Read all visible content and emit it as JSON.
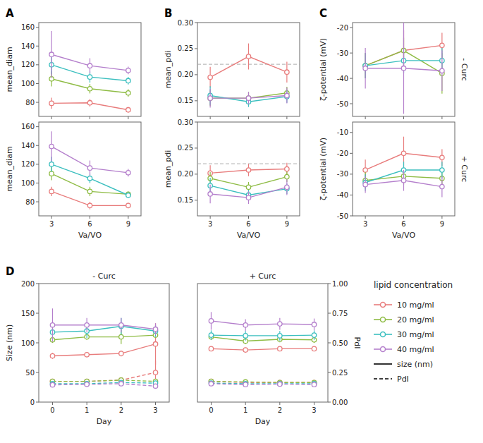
{
  "chart_data": [
    {
      "type": "line",
      "annotation": "A",
      "ylabel": "mean_diam",
      "x": [
        3,
        6,
        9
      ],
      "xlim": [
        2,
        10
      ],
      "xticks": [
        3,
        6,
        9
      ],
      "ylim": [
        65,
        165
      ],
      "yticks": [
        80,
        100,
        120,
        140,
        160
      ],
      "tick_labels": "y",
      "marker": "circle",
      "series": [
        {
          "color": "#e87c7c",
          "values": [
            79,
            79.5,
            72
          ],
          "errors": [
            6,
            4,
            3
          ]
        },
        {
          "color": "#8fbc45",
          "values": [
            105,
            94.5,
            90
          ],
          "errors": [
            8,
            5,
            4
          ]
        },
        {
          "color": "#3bbfbf",
          "values": [
            120,
            107,
            103
          ],
          "errors": [
            10,
            6,
            4
          ]
        },
        {
          "color": "#b47fcc",
          "values": [
            131,
            119,
            114
          ],
          "errors": [
            25,
            8,
            4
          ]
        }
      ]
    },
    {
      "type": "line",
      "xlabel": "Va/VO",
      "ylabel": "mean_diam",
      "x": [
        3,
        6,
        9
      ],
      "xlim": [
        2,
        10
      ],
      "xticks": [
        3,
        6,
        9
      ],
      "ylim": [
        65,
        165
      ],
      "yticks": [
        80,
        100,
        120,
        140,
        160
      ],
      "marker": "circle",
      "series": [
        {
          "color": "#e87c7c",
          "values": [
            91,
            76,
            76
          ],
          "errors": [
            5,
            4,
            3
          ]
        },
        {
          "color": "#8fbc45",
          "values": [
            110,
            91,
            88
          ],
          "errors": [
            7,
            5,
            3
          ]
        },
        {
          "color": "#3bbfbf",
          "values": [
            120,
            105,
            87
          ],
          "errors": [
            8,
            5,
            3
          ]
        },
        {
          "color": "#b47fcc",
          "values": [
            139,
            116,
            111
          ],
          "errors": [
            16,
            8,
            4
          ]
        }
      ]
    },
    {
      "type": "line",
      "annotation": "B",
      "ylabel": "mean_pdi",
      "x": [
        3,
        6,
        9
      ],
      "xlim": [
        2,
        10
      ],
      "xticks": [
        3,
        6,
        9
      ],
      "ylim": [
        0.12,
        0.3
      ],
      "yticks": [
        0.15,
        {
          "value": 0.2,
          "label": "0.20"
        },
        0.25,
        {
          "value": 0.3,
          "label": "0.30"
        }
      ],
      "reference_line": 0.22,
      "tick_labels": "y",
      "marker": "circle",
      "series": [
        {
          "color": "#e87c7c",
          "values": [
            0.195,
            0.235,
            0.205
          ],
          "errors": [
            0.02,
            0.025,
            0.02
          ]
        },
        {
          "color": "#8fbc45",
          "values": [
            0.155,
            0.155,
            0.165
          ],
          "errors": [
            0.015,
            0.012,
            0.012
          ]
        },
        {
          "color": "#3bbfbf",
          "values": [
            0.16,
            0.148,
            0.158
          ],
          "errors": [
            0.018,
            0.01,
            0.012
          ]
        },
        {
          "color": "#b47fcc",
          "values": [
            0.155,
            0.155,
            0.16
          ],
          "errors": [
            0.018,
            0.012,
            0.015
          ]
        }
      ]
    },
    {
      "type": "line",
      "xlabel": "Va/VO",
      "ylabel": "mean_pdi",
      "x": [
        3,
        6,
        9
      ],
      "xlim": [
        2,
        10
      ],
      "xticks": [
        3,
        6,
        9
      ],
      "ylim": [
        0.12,
        0.3
      ],
      "yticks": [
        0.15,
        {
          "value": 0.2,
          "label": "0.20"
        },
        0.25,
        {
          "value": 0.3,
          "label": "0.30"
        }
      ],
      "reference_line": 0.22,
      "marker": "circle",
      "series": [
        {
          "color": "#e87c7c",
          "values": [
            0.202,
            0.208,
            0.21
          ],
          "errors": [
            0.015,
            0.012,
            0.012
          ]
        },
        {
          "color": "#8fbc45",
          "values": [
            0.192,
            0.175,
            0.195
          ],
          "errors": [
            0.012,
            0.01,
            0.01
          ]
        },
        {
          "color": "#3bbfbf",
          "values": [
            0.178,
            0.16,
            0.172
          ],
          "errors": [
            0.015,
            0.01,
            0.01
          ]
        },
        {
          "color": "#b47fcc",
          "values": [
            0.162,
            0.155,
            0.175
          ],
          "errors": [
            0.018,
            0.012,
            0.015
          ]
        }
      ]
    },
    {
      "type": "line",
      "annotation": "C",
      "ylabel": "ζ-potential (mV)",
      "y2label": "- Curc",
      "x": [
        3,
        6,
        9
      ],
      "xlim": [
        2,
        10
      ],
      "xticks": [
        3,
        6,
        9
      ],
      "ylim": [
        -55,
        -18
      ],
      "yticks": [
        -50,
        -40,
        -30,
        -20
      ],
      "tick_labels": "y",
      "marker": "circle",
      "series": [
        {
          "color": "#e87c7c",
          "values": [
            -35,
            -29,
            -27
          ],
          "errors": [
            5,
            8,
            5
          ]
        },
        {
          "color": "#8fbc45",
          "values": [
            -35,
            -29,
            -38
          ],
          "errors": [
            5,
            5,
            8
          ]
        },
        {
          "color": "#3bbfbf",
          "values": [
            -35,
            -33,
            -33
          ],
          "errors": [
            5,
            5,
            5
          ]
        },
        {
          "color": "#b47fcc",
          "values": [
            -36,
            -36,
            -37
          ],
          "errors": [
            8,
            18,
            8
          ]
        }
      ]
    },
    {
      "type": "line",
      "xlabel": "Va/VO",
      "ylabel": "ζ-potential (mV)",
      "y2label": "+ Curc",
      "x": [
        3,
        6,
        9
      ],
      "xlim": [
        2,
        10
      ],
      "xticks": [
        3,
        6,
        9
      ],
      "ylim": [
        -50,
        -5
      ],
      "yticks": [
        -50,
        -40,
        -30,
        -20,
        -10
      ],
      "marker": "circle",
      "series": [
        {
          "color": "#e87c7c",
          "values": [
            -28,
            -20,
            -22
          ],
          "errors": [
            5,
            8,
            4
          ]
        },
        {
          "color": "#8fbc45",
          "values": [
            -33,
            -31,
            -32
          ],
          "errors": [
            4,
            4,
            4
          ]
        },
        {
          "color": "#3bbfbf",
          "values": [
            -34,
            -28,
            -28
          ],
          "errors": [
            4,
            4,
            4
          ]
        },
        {
          "color": "#b47fcc",
          "values": [
            -35,
            -33,
            -36
          ],
          "errors": [
            4,
            5,
            5
          ]
        }
      ]
    },
    {
      "type": "line",
      "annotation": "D",
      "title": "- Curc",
      "xlabel": "Day",
      "ylabel": "Size (nm)",
      "x": [
        0,
        1,
        2,
        3
      ],
      "xlim": [
        -0.4,
        3.4
      ],
      "xticks": [
        0,
        1,
        2,
        3
      ],
      "ylim": [
        0,
        200
      ],
      "yticks": [
        0,
        50,
        100,
        150,
        200
      ],
      "y2lim": [
        0,
        1
      ],
      "marker": "circle",
      "series": [
        {
          "color": "#e87c7c",
          "line_style": "solid",
          "values": [
            78,
            80,
            82,
            98
          ],
          "errors": [
            5,
            4,
            5,
            35
          ]
        },
        {
          "color": "#e87c7c",
          "line_style": "dashed",
          "axis": "y2",
          "values": [
            0.175,
            0.175,
            0.185,
            0.25
          ],
          "errors": [
            0.01,
            0.01,
            0.015,
            0.1
          ]
        },
        {
          "color": "#8fbc45",
          "line_style": "solid",
          "values": [
            105,
            110,
            110,
            113
          ],
          "errors": [
            5,
            5,
            12,
            5
          ]
        },
        {
          "color": "#8fbc45",
          "line_style": "dashed",
          "axis": "y2",
          "values": [
            0.175,
            0.175,
            0.185,
            0.175
          ],
          "errors": [
            0.015,
            0.015,
            0.015,
            0.015
          ]
        },
        {
          "color": "#3bbfbf",
          "line_style": "solid",
          "values": [
            118,
            120,
            128,
            120
          ],
          "errors": [
            15,
            12,
            14,
            10
          ]
        },
        {
          "color": "#3bbfbf",
          "line_style": "dashed",
          "axis": "y2",
          "values": [
            0.155,
            0.155,
            0.165,
            0.16
          ],
          "errors": [
            0.015,
            0.015,
            0.015,
            0.015
          ]
        },
        {
          "color": "#b47fcc",
          "line_style": "solid",
          "values": [
            130,
            130,
            130,
            123
          ],
          "errors": [
            28,
            12,
            12,
            10
          ]
        },
        {
          "color": "#b47fcc",
          "line_style": "dashed",
          "axis": "y2",
          "values": [
            0.145,
            0.15,
            0.155,
            0.135
          ],
          "errors": [
            0.015,
            0.015,
            0.015,
            0.015
          ]
        }
      ]
    },
    {
      "type": "line",
      "title": "+ Curc",
      "xlabel": "Day",
      "y2label": "PdI",
      "x": [
        0,
        1,
        2,
        3
      ],
      "xlim": [
        -0.4,
        3.4
      ],
      "xticks": [
        0,
        1,
        2,
        3
      ],
      "ylim": [
        0,
        200
      ],
      "y2lim": [
        0,
        1
      ],
      "y2ticks": [
        {
          "value": 0,
          "label": "0.00"
        },
        0.25,
        {
          "value": 0.5,
          "label": "0.50"
        },
        0.75,
        {
          "value": 1,
          "label": "1.00"
        }
      ],
      "marker": "circle",
      "series": [
        {
          "color": "#e87c7c",
          "line_style": "solid",
          "values": [
            90,
            88,
            90,
            90
          ],
          "errors": [
            4,
            4,
            4,
            4
          ]
        },
        {
          "color": "#e87c7c",
          "line_style": "dashed",
          "axis": "y2",
          "values": [
            0.175,
            0.165,
            0.165,
            0.165
          ],
          "errors": [
            0.015,
            0.01,
            0.01,
            0.01
          ]
        },
        {
          "color": "#8fbc45",
          "line_style": "solid",
          "values": [
            110,
            103,
            106,
            105
          ],
          "errors": [
            5,
            5,
            5,
            5
          ]
        },
        {
          "color": "#8fbc45",
          "line_style": "dashed",
          "axis": "y2",
          "values": [
            0.175,
            0.17,
            0.165,
            0.165
          ],
          "errors": [
            0.015,
            0.01,
            0.01,
            0.01
          ]
        },
        {
          "color": "#3bbfbf",
          "line_style": "solid",
          "values": [
            113,
            112,
            112,
            113
          ],
          "errors": [
            8,
            8,
            8,
            8
          ]
        },
        {
          "color": "#3bbfbf",
          "line_style": "dashed",
          "axis": "y2",
          "values": [
            0.16,
            0.155,
            0.155,
            0.155
          ],
          "errors": [
            0.015,
            0.01,
            0.01,
            0.01
          ]
        },
        {
          "color": "#b47fcc",
          "line_style": "solid",
          "values": [
            137,
            130,
            132,
            131
          ],
          "errors": [
            15,
            10,
            10,
            10
          ]
        },
        {
          "color": "#b47fcc",
          "line_style": "dashed",
          "axis": "y2",
          "values": [
            0.155,
            0.148,
            0.152,
            0.148
          ],
          "errors": [
            0.015,
            0.01,
            0.01,
            0.01
          ]
        }
      ]
    },
    {
      "type": "legend",
      "title": "lipid concentration",
      "series": [
        {
          "name": "10 mg/ml",
          "color": "#e87c7c",
          "marker": "circle",
          "line_style": "solid"
        },
        {
          "name": "20 mg/ml",
          "color": "#8fbc45",
          "marker": "circle",
          "line_style": "solid"
        },
        {
          "name": "30 mg/ml",
          "color": "#3bbfbf",
          "marker": "circle",
          "line_style": "solid"
        },
        {
          "name": "40 mg/ml",
          "color": "#b47fcc",
          "marker": "circle",
          "line_style": "solid"
        },
        {
          "name": "size (nm)",
          "color": "black",
          "line_style": "solid"
        },
        {
          "name": "PdI",
          "color": "black",
          "line_style": "dashed"
        }
      ]
    }
  ]
}
